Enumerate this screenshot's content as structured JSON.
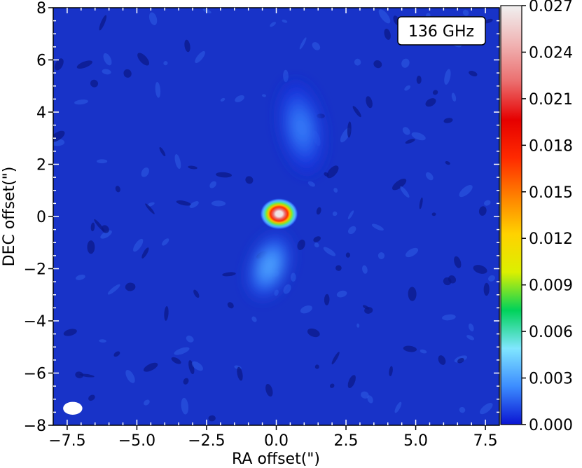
{
  "chart_data": {
    "type": "heatmap",
    "xlabel": "RA offset(\")",
    "ylabel": "DEC offset(\")",
    "xlim": [
      -8,
      8
    ],
    "ylim": [
      -8,
      8
    ],
    "x_ticks": [
      -7.5,
      -5.0,
      -2.5,
      0.0,
      2.5,
      5.0,
      7.5
    ],
    "x_tick_labels": [
      "−7.5",
      "−5.0",
      "−2.5",
      "0.0",
      "2.5",
      "5.0",
      "7.5"
    ],
    "y_ticks": [
      -8,
      -6,
      -4,
      -2,
      0,
      2,
      4,
      6,
      8
    ],
    "y_tick_labels": [
      "−8",
      "−6",
      "−4",
      "−2",
      "0",
      "2",
      "4",
      "6",
      "8"
    ],
    "annotation": "136 GHz",
    "colorbar": {
      "range": [
        0.0,
        0.027
      ],
      "ticks": [
        0.0,
        0.003,
        0.006,
        0.009,
        0.012,
        0.015,
        0.018,
        0.021,
        0.024,
        0.027
      ],
      "tick_labels": [
        "0.000",
        "0.003",
        "0.006",
        "0.009",
        "0.012",
        "0.015",
        "0.018",
        "0.021",
        "0.024",
        "0.027"
      ],
      "colors": [
        "#0a14d2",
        "#3c8cff",
        "#80e6ff",
        "#00d25a",
        "#dcf000",
        "#ffd200",
        "#ff8000",
        "#ff2a00",
        "#e60000",
        "#eb6e6e",
        "#f0b4b4",
        "#f0f0f0"
      ]
    },
    "background_color": "#1833c8",
    "features": [
      {
        "name": "core",
        "x": 0.1,
        "y": 0.1,
        "peak": 0.0265,
        "sx": 0.22,
        "sy": 0.2
      },
      {
        "name": "north-lobe",
        "x": 0.9,
        "y": 3.4,
        "peak": 0.0022,
        "sx": 0.55,
        "sy": 1.3
      },
      {
        "name": "south-lobe",
        "x": -0.25,
        "y": -1.9,
        "peak": 0.0033,
        "sx": 0.5,
        "sy": 0.95
      },
      {
        "name": "beam",
        "x": -7.3,
        "y": -7.35,
        "major": 0.6,
        "minor": 0.45
      }
    ]
  }
}
